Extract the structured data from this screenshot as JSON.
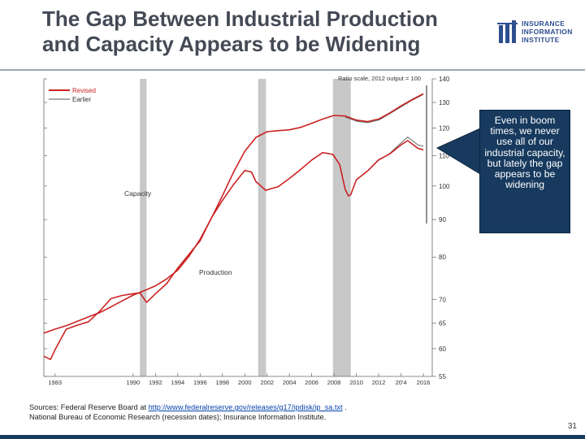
{
  "slide": {
    "title_line1": "The Gap Between Industrial Production",
    "title_line2": "and Capacity Appears to be Widening",
    "logo_lines": [
      "INSURANCE",
      "INFORMATION",
      "INSTITUTE"
    ],
    "callout": "Even in boom times, we never use all of our industrial capacity, but lately the gap appears to be widening",
    "sources_prefix": "Sources: Federal Reserve Board at ",
    "sources_link": "http://www.federalreserve.gov/releases/g17/ipdisk/ip_sa.txt",
    "sources_suffix": " .",
    "sources_line2": "National Bureau of Economic Research (recession dates); Insurance Information Institute.",
    "page_number": "31",
    "colors": {
      "title": "#444a55",
      "callout_bg": "#173a5e",
      "logo": "#2d4e8f",
      "revised": "#cc2222",
      "earlier": "#555555",
      "recession": "#c8c8c8"
    }
  },
  "chart_data": {
    "type": "line",
    "scale_note": "Ratio scale, 2012 output = 100",
    "y_log_scale": true,
    "ylim": [
      55,
      140
    ],
    "y_ticks": [
      55,
      60,
      65,
      70,
      80,
      90,
      100,
      110,
      120,
      130,
      140
    ],
    "xlim": [
      1982,
      2016.8
    ],
    "x_ticks": [
      1983,
      1990,
      1992,
      1994,
      1996,
      1998,
      2000,
      2002,
      2004,
      2006,
      2008,
      2010,
      2012,
      2014,
      2016
    ],
    "x_tick_labels": [
      "1983",
      "1990",
      "1992",
      "1994",
      "1996",
      "1998",
      "2000",
      "2002",
      "2004",
      "2006",
      "2008",
      "2010",
      "2012",
      "20'4",
      "2016"
    ],
    "legend": [
      "Revised",
      "Earlier"
    ],
    "legend_position": "top-left",
    "series_labels": {
      "capacity": "Capacity",
      "production": "Production"
    },
    "recessions": [
      [
        1990.6,
        1991.2
      ],
      [
        2001.2,
        2001.9
      ],
      [
        2007.9,
        2009.5
      ]
    ],
    "series": [
      {
        "name": "Capacity",
        "style": "Revised",
        "x": [
          1982,
          1983,
          1984,
          1985,
          1986,
          1987,
          1988,
          1989,
          1990,
          1991,
          1992,
          1993,
          1994,
          1995,
          1996,
          1997,
          1998,
          1999,
          2000,
          2001,
          2002,
          2003,
          2004,
          2005,
          2006,
          2007,
          2008,
          2009,
          2010,
          2011,
          2012,
          2013,
          2014,
          2015,
          2016
        ],
        "y": [
          63,
          63.8,
          64.5,
          65.4,
          66.3,
          67.2,
          68.4,
          69.7,
          71.0,
          72.0,
          73.1,
          74.7,
          76.8,
          80.2,
          84.6,
          90.3,
          97.0,
          104.5,
          111.5,
          116.5,
          118.6,
          119.0,
          119.3,
          120.2,
          121.8,
          123.4,
          124.8,
          124.6,
          123.0,
          122.4,
          123.4,
          125.8,
          128.6,
          131.2,
          133.6
        ]
      },
      {
        "name": "Capacity",
        "style": "Earlier",
        "x": [
          2009,
          2010,
          2011,
          2012,
          2013,
          2014,
          2015,
          2016
        ],
        "y": [
          124.2,
          122.6,
          122.0,
          123.0,
          125.5,
          128.2,
          130.9,
          133.3
        ]
      },
      {
        "name": "Production",
        "style": "Revised",
        "x": [
          1982,
          1982.6,
          1983,
          1984,
          1985,
          1986,
          1987,
          1988,
          1989,
          1990,
          1990.6,
          1991.2,
          1992,
          1993,
          1994,
          1995,
          1996,
          1997,
          1998,
          1999,
          2000,
          2000.6,
          2001,
          2001.9,
          2002,
          2003,
          2004,
          2005,
          2006,
          2007,
          2007.9,
          2008.5,
          2009,
          2009.3,
          2009.5,
          2010,
          2011,
          2012,
          2013,
          2014,
          2014.6,
          2015,
          2015.5,
          2016
        ],
        "y": [
          58.6,
          58.0,
          59.8,
          63.8,
          64.6,
          65.3,
          67.5,
          70.2,
          70.9,
          71.3,
          71.5,
          69.4,
          71.3,
          73.6,
          77.3,
          80.7,
          84.2,
          90.4,
          95.6,
          100.5,
          105.0,
          104.5,
          101.4,
          98.6,
          98.8,
          99.8,
          102.4,
          105.3,
          108.5,
          111.1,
          110.4,
          107.0,
          98.9,
          96.9,
          97.3,
          102.0,
          104.8,
          108.6,
          110.6,
          113.8,
          115.3,
          114.1,
          112.6,
          112.0
        ]
      },
      {
        "name": "Production",
        "style": "Earlier",
        "x": [
          2012,
          2013,
          2014,
          2014.6,
          2015,
          2015.5,
          2016
        ],
        "y": [
          108.4,
          110.8,
          114.5,
          116.6,
          115.4,
          113.8,
          113.3
        ]
      }
    ]
  }
}
